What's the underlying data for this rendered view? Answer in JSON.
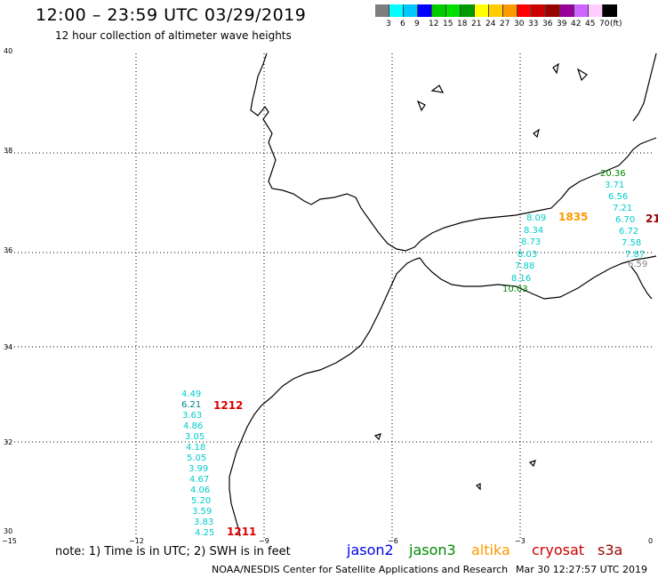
{
  "header": {
    "title": "12:00 – 23:59 UTC 03/29/2019",
    "subtitle": "12 hour collection of altimeter wave heights"
  },
  "legend": {
    "colors": [
      "#7f7f7f",
      "#00ffff",
      "#00c8ff",
      "#0000ff",
      "#00cc00",
      "#00e000",
      "#009900",
      "#ffff00",
      "#ffcc00",
      "#ff9900",
      "#ff0000",
      "#cc0000",
      "#990000",
      "#990099",
      "#cc66ff",
      "#ffccff",
      "#000000"
    ],
    "labels": [
      "3",
      "6",
      "9",
      "12",
      "15",
      "18",
      "21",
      "24",
      "27",
      "30",
      "33",
      "36",
      "39",
      "42",
      "45",
      "70",
      "(ft)"
    ]
  },
  "axes": {
    "y_ticks": [
      "40",
      "38",
      "36",
      "34",
      "32",
      "30"
    ],
    "x_ticks": [
      "−15",
      "−12",
      "−9",
      "−6",
      "−3",
      "0"
    ]
  },
  "tracks": {
    "atlantic_label": "1212",
    "atlantic_end_label": "1211",
    "atlantic_values": [
      "4.49",
      "6.21",
      "3.63",
      "4.86",
      "3.05",
      "4.18",
      "5.05",
      "3.99",
      "4.67",
      "4.06",
      "5.20",
      "3.59",
      "3.83",
      "4.25"
    ],
    "alboran_label": "1835",
    "alboran_values": [
      "8.09",
      "8.34",
      "8.73",
      "8.03",
      "7.88",
      "8.16",
      "10.03"
    ],
    "east_values": [
      "20.36",
      "3.71",
      "6.56",
      "7.21",
      "6.70",
      "6.72",
      "7.58",
      "7.87",
      "6.59"
    ],
    "east_label_partial": "21"
  },
  "footer": {
    "note": "note: 1) Time is in UTC; 2) SWH is in feet",
    "satellites": [
      "jason2",
      "jason3",
      "altika",
      "cryosat",
      "s3a"
    ],
    "satellite_colors": [
      "#0000ee",
      "#008800",
      "#ff9900",
      "#cc0000",
      "#990000"
    ],
    "credit": "NOAA/NESDIS Center for Satellite Applications and Research",
    "timestamp": "Mar 30 12:27:57 UTC 2019"
  }
}
